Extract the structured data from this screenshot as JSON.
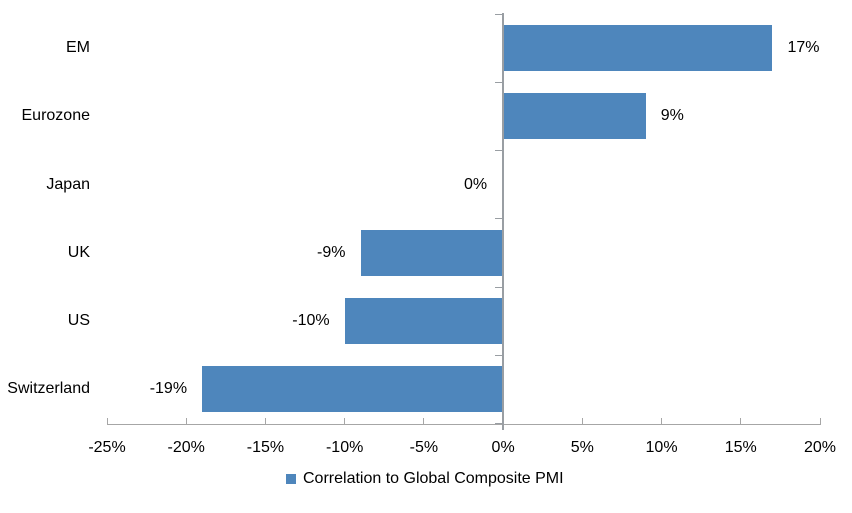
{
  "colors": {
    "bar": "#4E86BC",
    "value_axis": "#A6A6A6",
    "category_axis": "#999EA3",
    "text": "#000000",
    "background": "#FFFFFF"
  },
  "chart_data": {
    "type": "bar",
    "orientation": "horizontal",
    "categories": [
      "EM",
      "Eurozone",
      "Japan",
      "UK",
      "US",
      "Switzerland"
    ],
    "values": [
      17,
      9,
      0,
      -9,
      -10,
      -19
    ],
    "value_labels": [
      "17%",
      "9%",
      "0%",
      "-9%",
      "-10%",
      "-19%"
    ],
    "series_name": "Correlation to Global Composite PMI",
    "xlim": [
      -25,
      20
    ],
    "x_ticks": [
      -25,
      -20,
      -15,
      -10,
      -5,
      0,
      5,
      10,
      15,
      20
    ],
    "x_tick_labels": [
      "-25%",
      "-20%",
      "-15%",
      "-10%",
      "-5%",
      "0%",
      "5%",
      "10%",
      "15%",
      "20%"
    ],
    "grid": false,
    "legend_position": "bottom-center",
    "legend_swatch": "blue-square"
  }
}
